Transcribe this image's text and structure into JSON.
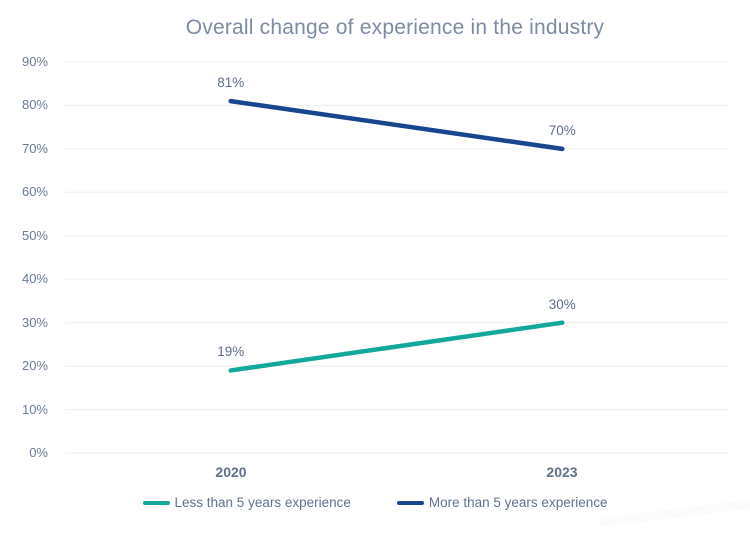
{
  "colors": {
    "title": "#7d8ca4",
    "axis_label": "#6b7b95",
    "data_label": "#5e6e88",
    "x_label": "#60718a",
    "legend_text": "#5f7290",
    "gridline": "#f1f1f1",
    "teal": "#14a79b",
    "navy": "#17468f",
    "watermark": "#fbfbfb"
  },
  "chart_data": {
    "type": "line",
    "title": "Overall change of experience in the industry",
    "categories": [
      "2020",
      "2023"
    ],
    "series": [
      {
        "name": "Less than 5 years experience",
        "values": [
          19,
          30
        ],
        "value_labels": [
          "19%",
          "30%"
        ],
        "color": "#14a79b"
      },
      {
        "name": "More than 5 years experience",
        "values": [
          81,
          70
        ],
        "value_labels": [
          "81%",
          "70%"
        ],
        "color": "#17468f"
      }
    ],
    "xlabel": "",
    "ylabel": "",
    "ylim": [
      0,
      90
    ],
    "ytick_step": 10,
    "ytick_labels": [
      "0%",
      "10%",
      "20%",
      "30%",
      "40%",
      "50%",
      "60%",
      "70%",
      "80%",
      "90%"
    ],
    "grid": true,
    "legend_position": "bottom",
    "data_labels": true
  }
}
